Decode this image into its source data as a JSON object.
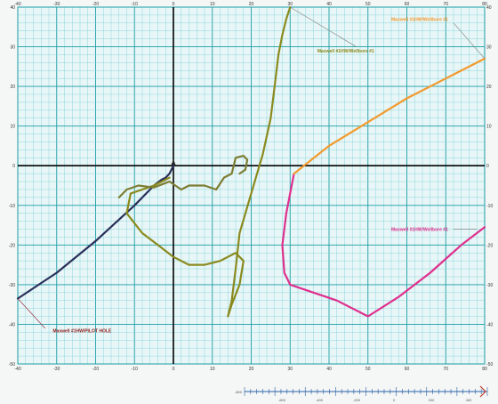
{
  "chart_data": {
    "type": "line",
    "title": "",
    "xlabel": "",
    "ylabel": "",
    "xlim": [
      -40,
      80
    ],
    "ylim": [
      -50,
      40
    ],
    "x_ticks": [
      -40,
      -30,
      -20,
      -10,
      0,
      10,
      20,
      30,
      40,
      50,
      60,
      70,
      80
    ],
    "y_ticks": [
      40,
      30,
      20,
      10,
      0,
      -10,
      -20,
      -30,
      -40,
      -50
    ],
    "grid": true,
    "series": [
      {
        "name": "Maxwell #1HW/PILOT HOLE",
        "color": "#2a2f5a",
        "x": [
          0,
          -1,
          -2,
          -3,
          -5,
          -10,
          -20,
          -30,
          -40
        ],
        "y": [
          0,
          -2,
          -3,
          -3.5,
          -5,
          -10,
          -19,
          -27,
          -33.5
        ]
      },
      {
        "name": "Maxwell #1HW/Wellbore #1",
        "color": "#8a8a1e",
        "x": [
          -1,
          -5,
          -11,
          -12,
          -8,
          -4,
          0,
          4,
          8,
          12,
          16,
          18,
          17,
          15,
          14,
          15,
          16,
          17,
          20,
          23,
          25,
          26,
          27,
          28,
          29,
          30
        ],
        "y": [
          -3,
          -5,
          -7,
          -12,
          -17,
          -20,
          -23,
          -25,
          -25,
          -24,
          -22,
          -24,
          -30,
          -35,
          -38,
          -34,
          -26,
          -17,
          -7,
          3,
          12,
          20,
          28,
          33,
          37,
          40
        ]
      },
      {
        "name": "Maxwell #1HW/Wellbore #1",
        "color": "#df2f8e",
        "x": [
          31,
          29,
          28,
          28.5,
          30,
          36,
          42,
          50,
          58,
          66,
          74,
          80
        ],
        "y": [
          -2,
          -12,
          -20,
          -27,
          -30,
          -32,
          -34,
          -38,
          -33,
          -27,
          -20,
          -15.5
        ]
      },
      {
        "name": "Maxwell #1HW/Wellbore #1",
        "color": "#f39a2e",
        "x": [
          31,
          40,
          50,
          60,
          70,
          80
        ],
        "y": [
          -2,
          5,
          11,
          17,
          22,
          27
        ]
      },
      {
        "name": "",
        "color": "#7d7d32",
        "x": [
          -14,
          -12,
          -9,
          -5,
          -1,
          2,
          4,
          8,
          11,
          13,
          15,
          16,
          18,
          19,
          18.5,
          17
        ],
        "y": [
          -8,
          -6,
          -5,
          -5.5,
          -4,
          -6,
          -5,
          -5,
          -6,
          -3,
          -2,
          2,
          2.5,
          1.5,
          -1,
          -2
        ]
      }
    ],
    "labels": [
      {
        "text": "Maxwell #1HW/PILOT HOLE",
        "x": -31,
        "y": -42,
        "color": "#8f1c1c"
      },
      {
        "text": "Maxwell #1HW/Wellbore #1",
        "x": 37,
        "y": 28.5,
        "color": "#8a8a1e"
      },
      {
        "text": "Maxwell #1HW/Wellbore #1",
        "x": 56,
        "y": -16.5,
        "color": "#df2f8e"
      },
      {
        "text": "Maxwell #1HW/Wellbore #1",
        "x": 56,
        "y": 36.5,
        "color": "#f39a2e"
      }
    ],
    "subaxis": {
      "start_label": "-800",
      "labels": [
        "-600",
        "-400",
        "-200",
        "0",
        "200",
        "400"
      ]
    }
  },
  "colors": {
    "grid_major": "#1a9ea5",
    "grid_minor": "#85d4d8",
    "axis": "#000000",
    "background": "#e8f6f7"
  }
}
